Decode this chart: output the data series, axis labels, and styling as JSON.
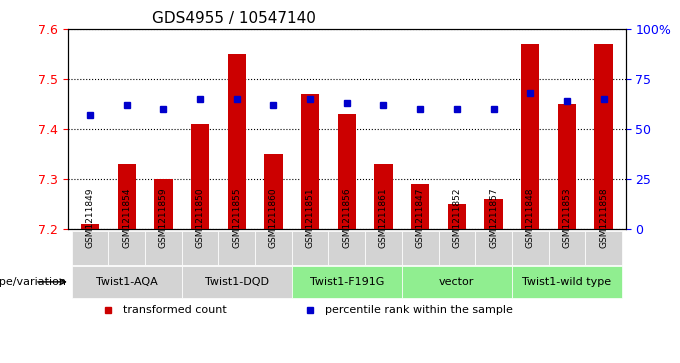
{
  "title": "GDS4955 / 10547140",
  "samples": [
    "GSM1211849",
    "GSM1211854",
    "GSM1211859",
    "GSM1211850",
    "GSM1211855",
    "GSM1211860",
    "GSM1211851",
    "GSM1211856",
    "GSM1211861",
    "GSM1211847",
    "GSM1211852",
    "GSM1211857",
    "GSM1211848",
    "GSM1211853",
    "GSM1211858"
  ],
  "transformed_counts": [
    7.21,
    7.33,
    7.3,
    7.41,
    7.55,
    7.35,
    7.47,
    7.43,
    7.33,
    7.29,
    7.25,
    7.26,
    7.57,
    7.45,
    7.57
  ],
  "percentile_ranks": [
    57,
    62,
    60,
    65,
    65,
    62,
    65,
    63,
    62,
    60,
    60,
    60,
    68,
    64,
    65
  ],
  "groups": [
    {
      "label": "Twist1-AQA",
      "samples": [
        "GSM1211849",
        "GSM1211854",
        "GSM1211859"
      ],
      "color": "#d3d3d3"
    },
    {
      "label": "Twist1-DQD",
      "samples": [
        "GSM1211850",
        "GSM1211855",
        "GSM1211860"
      ],
      "color": "#d3d3d3"
    },
    {
      "label": "Twist1-F191G",
      "samples": [
        "GSM1211851",
        "GSM1211856",
        "GSM1211861"
      ],
      "color": "#90ee90"
    },
    {
      "label": "vector",
      "samples": [
        "GSM1211847",
        "GSM1211852",
        "GSM1211857"
      ],
      "color": "#90ee90"
    },
    {
      "label": "Twist1-wild type",
      "samples": [
        "GSM1211848",
        "GSM1211853",
        "GSM1211858"
      ],
      "color": "#90ee90"
    }
  ],
  "ylim_left": [
    7.2,
    7.6
  ],
  "ylim_right": [
    0,
    100
  ],
  "yticks_left": [
    7.2,
    7.3,
    7.4,
    7.5,
    7.6
  ],
  "yticks_right": [
    0,
    25,
    50,
    75,
    100
  ],
  "bar_color": "#cc0000",
  "dot_color": "#0000cc",
  "bar_bottom": 7.2,
  "legend_items": [
    "transformed count",
    "percentile rank within the sample"
  ],
  "legend_colors": [
    "#cc0000",
    "#0000cc"
  ],
  "genotype_label": "genotype/variation",
  "group_row_colors": [
    "#d3d3d3",
    "#d3d3d3",
    "#90ee90",
    "#90ee90",
    "#90ee90"
  ]
}
